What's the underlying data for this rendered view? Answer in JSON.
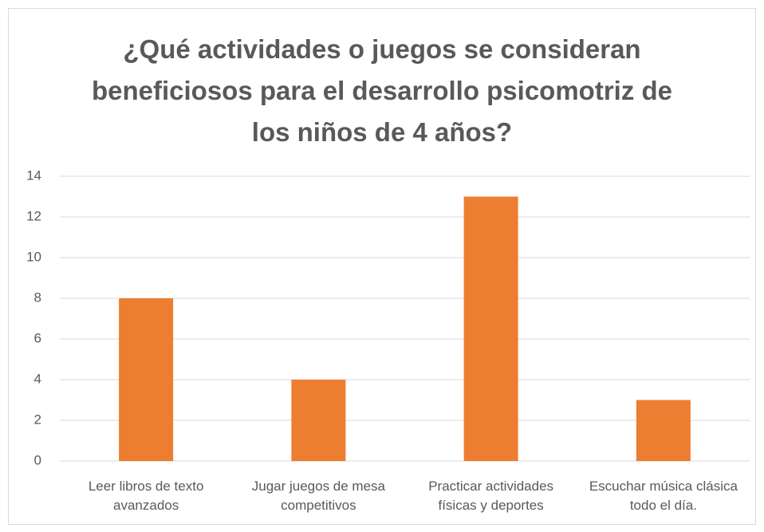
{
  "chart_data": {
    "type": "bar",
    "title": "¿Qué actividades o juegos se consideran beneficiosos para el desarrollo psicomotriz de los niños de 4 años?",
    "categories": [
      "Leer libros de texto avanzados",
      "Jugar juegos de mesa competitivos",
      "Practicar actividades físicas y deportes",
      "Escuchar música clásica todo el día."
    ],
    "values": [
      8,
      4,
      13,
      3
    ],
    "color": "#ed7d31",
    "ylim": [
      0,
      14
    ],
    "yticks": [
      0,
      2,
      4,
      6,
      8,
      10,
      12,
      14
    ],
    "grid": true
  }
}
